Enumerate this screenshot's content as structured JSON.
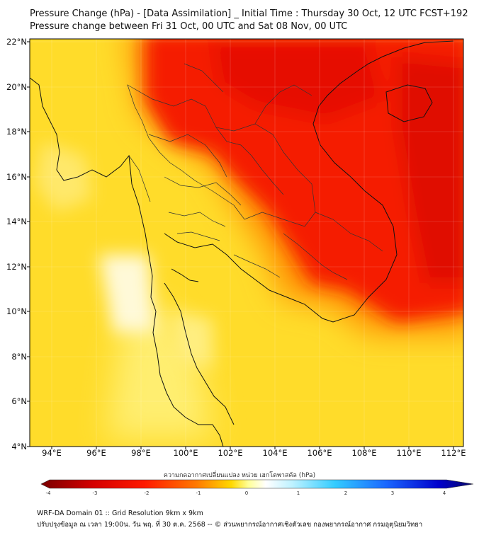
{
  "title_line1": "Pressure Change (hPa) - [Data Assimilation] _ Initial Time : Thursday 30 Oct, 12 UTC FCST+192",
  "title_line2": "Pressure change between Fri 31 Oct, 00 UTC and Sat 08 Nov, 00 UTC",
  "map": {
    "lon_range": [
      93,
      112.5
    ],
    "lat_range": [
      4,
      22.2
    ],
    "lat_ticks": [
      "22°N",
      "20°N",
      "18°N",
      "16°N",
      "14°N",
      "12°N",
      "10°N",
      "8°N",
      "6°N",
      "4°N"
    ],
    "lon_ticks": [
      "94°E",
      "96°E",
      "98°E",
      "100°E",
      "102°E",
      "104°E",
      "106°E",
      "108°E",
      "110°E",
      "112°E"
    ]
  },
  "colorbar": {
    "title": "ความกดอากาศเปลี่ยนแปลง หน่วย เฮกโตพาสคัล (hPa)",
    "min": -4,
    "max": 4,
    "labels": [
      "-4",
      "-3",
      "-2",
      "-1",
      "0",
      "1",
      "2",
      "3",
      "4"
    ],
    "colors": [
      "#7a0000",
      "#d40000",
      "#ff1a00",
      "#ff7a00",
      "#ffd800",
      "#ffff99",
      "#ffffff",
      "#bff2ff",
      "#33ccff",
      "#1a66ff",
      "#0000cc",
      "#0a0a66"
    ]
  },
  "footer": {
    "line1": "WRF-DA Domain 01 :: Grid Resolution 9km x 9km",
    "line2": "ปรับปรุงข้อมูล ณ เวลา 19:00น. วัน พฤ. ที่ 30 ต.ค. 2568 -- © ส่วนพยากรณ์อากาศเชิงตัวเลข กองพยากรณ์อากาศ กรมอุตุนิยมวิทยา"
  }
}
